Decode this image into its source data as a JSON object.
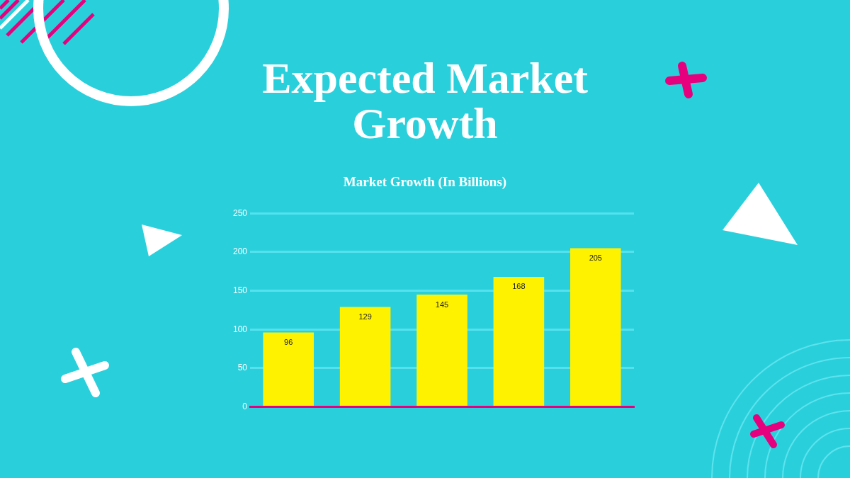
{
  "chart_data": {
    "type": "bar",
    "title": "Expected Market Growth",
    "subtitle": "Market Growth (In Billions)",
    "categories": [
      null,
      null,
      null,
      null,
      null
    ],
    "values": [
      96,
      129,
      145,
      168,
      205
    ],
    "color": "#fff200",
    "ylim": [
      0,
      250
    ],
    "yticks": [
      0,
      50,
      100,
      150,
      200,
      250
    ],
    "grid": "y",
    "data_labels": true
  }
}
